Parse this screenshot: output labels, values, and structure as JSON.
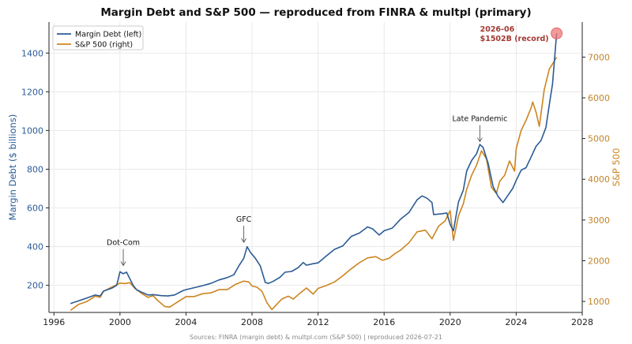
{
  "chart_data": {
    "type": "line",
    "title": "Margin Debt and S&P 500  —  reproduced from FINRA & multpl (primary)",
    "xlabel": "",
    "ylabel_left": "Margin Debt ($ billions)",
    "ylabel_right": "S&P 500",
    "xlim": [
      1995.7,
      2028.0
    ],
    "ylim_left": [
      60,
      1560
    ],
    "ylim_right": [
      730,
      7860
    ],
    "x_ticks": [
      1996,
      2000,
      2004,
      2008,
      2012,
      2016,
      2020,
      2024,
      2028
    ],
    "y_ticks_left": [
      200,
      400,
      600,
      800,
      1000,
      1200,
      1400
    ],
    "y_ticks_right": [
      1000,
      2000,
      3000,
      4000,
      5000,
      6000,
      7000
    ],
    "grid": true,
    "legend_position": "top-left",
    "colors": {
      "margin": "#2b5b95",
      "sp500": "#cd8520",
      "record": "#ee7777"
    },
    "series": [
      {
        "name": "Margin Debt (left)",
        "axis": "left",
        "x": [
          1997.0,
          1997.5,
          1998.0,
          1998.5,
          1998.8,
          1999.0,
          1999.5,
          1999.8,
          2000.0,
          2000.2,
          2000.4,
          2000.8,
          2001.0,
          2001.3,
          2001.7,
          2002.0,
          2002.5,
          2002.9,
          2003.3,
          2003.8,
          2004.0,
          2004.5,
          2005.0,
          2005.5,
          2006.0,
          2006.5,
          2006.9,
          2007.2,
          2007.5,
          2007.7,
          2007.9,
          2008.2,
          2008.5,
          2008.8,
          2009.0,
          2009.3,
          2009.7,
          2010.0,
          2010.4,
          2010.8,
          2011.1,
          2011.3,
          2011.7,
          2012.0,
          2012.5,
          2013.0,
          2013.5,
          2014.0,
          2014.5,
          2015.0,
          2015.3,
          2015.7,
          2016.0,
          2016.5,
          2017.0,
          2017.5,
          2018.0,
          2018.3,
          2018.6,
          2018.9,
          2019.0,
          2019.5,
          2019.8,
          2020.0,
          2020.2,
          2020.5,
          2020.8,
          2021.0,
          2021.3,
          2021.6,
          2021.8,
          2022.0,
          2022.3,
          2022.6,
          2022.9,
          2023.2,
          2023.5,
          2023.8,
          2024.0,
          2024.3,
          2024.6,
          2024.9,
          2025.2,
          2025.5,
          2025.8,
          2026.0,
          2026.2,
          2026.45
        ],
        "y": [
          106,
          120,
          135,
          150,
          145,
          170,
          185,
          200,
          270,
          260,
          268,
          200,
          178,
          165,
          150,
          152,
          147,
          145,
          150,
          172,
          178,
          188,
          198,
          210,
          228,
          240,
          255,
          300,
          340,
          400,
          370,
          340,
          300,
          215,
          210,
          222,
          242,
          268,
          272,
          292,
          318,
          304,
          312,
          316,
          352,
          386,
          404,
          452,
          470,
          502,
          492,
          460,
          482,
          496,
          542,
          576,
          642,
          662,
          650,
          628,
          566,
          570,
          574,
          515,
          482,
          630,
          692,
          790,
          845,
          880,
          928,
          912,
          830,
          710,
          660,
          628,
          665,
          702,
          742,
          795,
          808,
          862,
          918,
          948,
          1015,
          1130,
          1240,
          1502
        ]
      },
      {
        "name": "S&P 500 (right)",
        "axis": "right",
        "x": [
          1997.0,
          1997.5,
          1998.0,
          1998.5,
          1998.8,
          1999.0,
          1999.5,
          2000.0,
          2000.3,
          2000.6,
          2000.9,
          2001.3,
          2001.7,
          2002.0,
          2002.3,
          2002.7,
          2003.0,
          2003.5,
          2004.0,
          2004.5,
          2005.0,
          2005.5,
          2006.0,
          2006.5,
          2007.0,
          2007.5,
          2007.8,
          2008.0,
          2008.3,
          2008.6,
          2008.9,
          2009.2,
          2009.5,
          2009.8,
          2010.2,
          2010.5,
          2010.9,
          2011.3,
          2011.7,
          2012.0,
          2012.5,
          2013.0,
          2013.5,
          2014.0,
          2014.5,
          2015.0,
          2015.5,
          2015.9,
          2016.3,
          2016.6,
          2017.0,
          2017.5,
          2018.0,
          2018.5,
          2018.9,
          2019.3,
          2019.7,
          2020.0,
          2020.2,
          2020.5,
          2020.8,
          2021.0,
          2021.3,
          2021.6,
          2021.9,
          2022.2,
          2022.5,
          2022.8,
          2023.0,
          2023.3,
          2023.6,
          2023.9,
          2024.0,
          2024.3,
          2024.6,
          2024.9,
          2025.0,
          2025.2,
          2025.4,
          2025.7,
          2026.0,
          2026.3,
          2026.45
        ],
        "y": [
          780,
          930,
          1000,
          1130,
          1100,
          1250,
          1350,
          1450,
          1440,
          1460,
          1320,
          1200,
          1100,
          1140,
          1020,
          880,
          860,
          990,
          1120,
          1120,
          1190,
          1210,
          1290,
          1290,
          1420,
          1500,
          1480,
          1380,
          1350,
          1250,
          970,
          800,
          930,
          1060,
          1130,
          1060,
          1200,
          1330,
          1180,
          1320,
          1390,
          1480,
          1630,
          1800,
          1950,
          2070,
          2100,
          2010,
          2060,
          2160,
          2260,
          2440,
          2710,
          2750,
          2540,
          2850,
          2980,
          3230,
          2500,
          3100,
          3400,
          3750,
          4100,
          4350,
          4700,
          4500,
          3800,
          3650,
          3950,
          4100,
          4450,
          4200,
          4750,
          5200,
          5450,
          5750,
          5900,
          5650,
          5300,
          6200,
          6700,
          6900,
          7000
        ]
      }
    ],
    "annotations": [
      {
        "text": "Dot-Com",
        "x": 2000.2,
        "y": 290
      },
      {
        "text": "GFC",
        "x": 2007.5,
        "y": 410
      },
      {
        "text": "Late Pandemic",
        "x": 2021.8,
        "y": 930
      }
    ],
    "record_label": [
      "2026-06",
      "$1502B (record)"
    ],
    "source": "Sources: FINRA (margin debt) & multpl.com (S&P 500)  |  reproduced 2026-07-21"
  }
}
